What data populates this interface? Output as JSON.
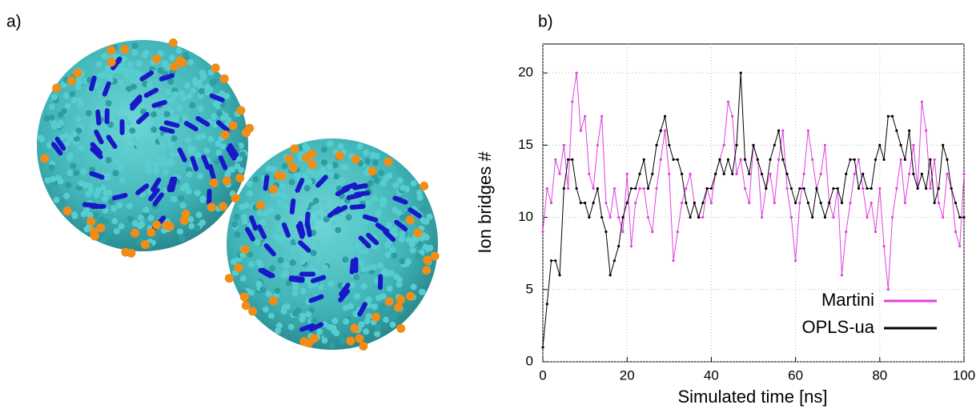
{
  "panel_a_label": "a)",
  "chart_data": {
    "type": "line",
    "panel_label": "b)",
    "xlabel": "Simulated time [ns]",
    "ylabel": "Ion bridges #",
    "x": [
      0,
      1,
      2,
      3,
      4,
      5,
      6,
      7,
      8,
      9,
      10,
      11,
      12,
      13,
      14,
      15,
      16,
      17,
      18,
      19,
      20,
      21,
      22,
      23,
      24,
      25,
      26,
      27,
      28,
      29,
      30,
      31,
      32,
      33,
      34,
      35,
      36,
      37,
      38,
      39,
      40,
      41,
      42,
      43,
      44,
      45,
      46,
      47,
      48,
      49,
      50,
      51,
      52,
      53,
      54,
      55,
      56,
      57,
      58,
      59,
      60,
      61,
      62,
      63,
      64,
      65,
      66,
      67,
      68,
      69,
      70,
      71,
      72,
      73,
      74,
      75,
      76,
      77,
      78,
      79,
      80,
      81,
      82,
      83,
      84,
      85,
      86,
      87,
      88,
      89,
      90,
      91,
      92,
      93,
      94,
      95,
      96,
      97,
      98,
      99,
      100
    ],
    "series": [
      {
        "name": "Martini",
        "color": "#e040e0",
        "values": [
          9,
          12,
          11,
          14,
          13,
          15,
          12,
          18,
          20,
          16,
          17,
          13,
          12,
          15,
          17,
          11,
          10,
          12,
          10,
          9,
          13,
          8,
          11,
          12,
          12,
          10,
          9,
          12,
          14,
          16,
          13,
          7,
          9,
          11,
          12,
          13,
          11,
          10,
          10,
          12,
          11,
          13,
          14,
          15,
          18,
          17,
          13,
          14,
          12,
          11,
          15,
          14,
          10,
          12,
          13,
          11,
          14,
          16,
          12,
          10,
          7,
          11,
          13,
          16,
          14,
          12,
          13,
          15,
          11,
          10,
          12,
          6,
          9,
          11,
          13,
          14,
          12,
          10,
          11,
          9,
          12,
          8,
          5,
          10,
          12,
          14,
          11,
          13,
          15,
          12,
          18,
          16,
          12,
          14,
          11,
          10,
          13,
          12,
          9,
          8,
          13
        ]
      },
      {
        "name": "OPLS-ua",
        "color": "#000000",
        "values": [
          1,
          4,
          7,
          7,
          6,
          12,
          14,
          14,
          12,
          11,
          11,
          10,
          11,
          12,
          10,
          9,
          6,
          7,
          8,
          10,
          11,
          12,
          12,
          13,
          14,
          12,
          13,
          15,
          16,
          17,
          15,
          14,
          14,
          13,
          11,
          10,
          11,
          10,
          11,
          12,
          12,
          13,
          14,
          13,
          14,
          13,
          15,
          20,
          14,
          13,
          15,
          14,
          13,
          12,
          14,
          15,
          16,
          14,
          13,
          12,
          11,
          12,
          12,
          11,
          10,
          12,
          11,
          10,
          11,
          12,
          12,
          11,
          13,
          14,
          14,
          12,
          13,
          12,
          12,
          14,
          15,
          14,
          17,
          17,
          16,
          15,
          14,
          16,
          13,
          12,
          13,
          12,
          14,
          11,
          12,
          15,
          14,
          12,
          11,
          10,
          10
        ]
      }
    ],
    "xlim": [
      0,
      100
    ],
    "xticks": [
      0,
      20,
      40,
      60,
      80,
      100
    ],
    "ylim": [
      0,
      22
    ],
    "yticks": [
      0,
      5,
      10,
      15,
      20
    ],
    "grid": true,
    "legend": "lower right"
  }
}
